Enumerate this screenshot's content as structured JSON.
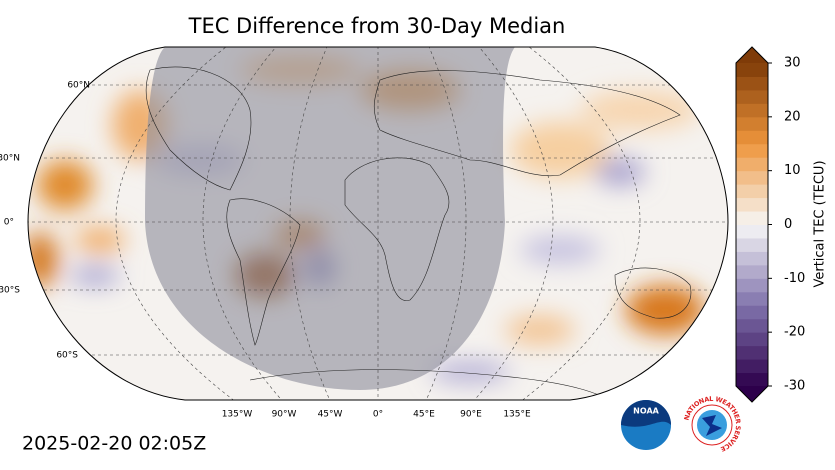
{
  "title": "TEC Difference from 30-Day Median",
  "timestamp": "2025-02-20 02:05Z",
  "colorbar": {
    "label": "Vertical TEC (TECU)",
    "lim": [
      -30,
      30
    ],
    "ticks": [
      -30,
      -20,
      -10,
      0,
      10,
      20,
      30
    ]
  },
  "lat_labels": [
    "60°N",
    "30°N",
    "0°",
    "30°S",
    "60°S"
  ],
  "lon_labels": [
    "135°W",
    "90°W",
    "45°W",
    "0°",
    "45°E",
    "90°E",
    "135°E"
  ],
  "logos": {
    "noaa": "NOAA",
    "nws": "NATIONAL WEATHER SERVICE"
  }
}
